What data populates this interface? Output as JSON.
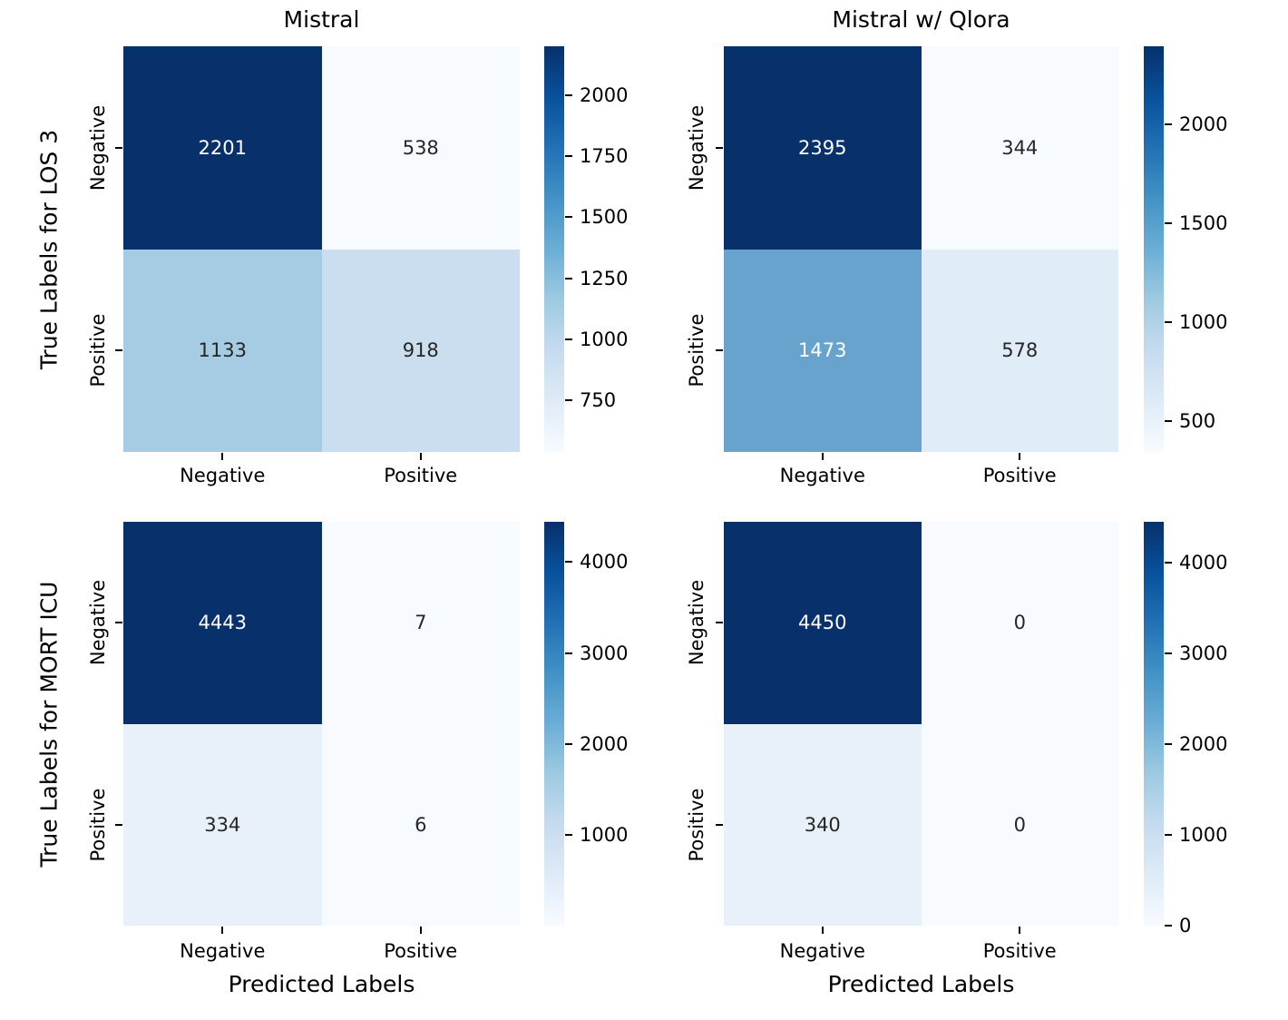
{
  "figure": {
    "background": "#ffffff",
    "annot_light_color": "#ffffff",
    "annot_dark_color": "#262626",
    "axis_text_color": "#000000",
    "colorbar_gradient_top_to_bottom": [
      "#08306b",
      "#08519c",
      "#2171b5",
      "#4292c6",
      "#6baed6",
      "#9ecae1",
      "#c6dbef",
      "#deebf7",
      "#f7fbff"
    ]
  },
  "chart_data": [
    {
      "type": "heatmap",
      "title": "Mistral",
      "ylabel": "True Labels for LOS 3",
      "xlabel": "",
      "x_tick_labels": [
        "Negative",
        "Positive"
      ],
      "y_tick_labels": [
        "Negative",
        "Positive"
      ],
      "values": [
        [
          2201,
          538
        ],
        [
          1133,
          918
        ]
      ],
      "vmin": 538,
      "vmax": 2201,
      "colorbar_ticks": [
        2000,
        1750,
        1500,
        1250,
        1000,
        750
      ],
      "colormap": "Blues",
      "legend_position": "right-colorbar",
      "cell_colors": [
        [
          "#08306b",
          "#f7fbff"
        ],
        [
          "#a6cce3",
          "#cadeef"
        ]
      ],
      "annot_colors": [
        [
          "#ffffff",
          "#262626"
        ],
        [
          "#262626",
          "#262626"
        ]
      ]
    },
    {
      "type": "heatmap",
      "title": "Mistral w/ Qlora",
      "ylabel": "",
      "xlabel": "",
      "x_tick_labels": [
        "Negative",
        "Positive"
      ],
      "y_tick_labels": [
        "Negative",
        "Positive"
      ],
      "values": [
        [
          2395,
          344
        ],
        [
          1473,
          578
        ]
      ],
      "vmin": 344,
      "vmax": 2395,
      "colorbar_ticks": [
        2000,
        1500,
        1000,
        500
      ],
      "colormap": "Blues",
      "legend_position": "right-colorbar",
      "cell_colors": [
        [
          "#08306b",
          "#f7fbff"
        ],
        [
          "#68a3ce",
          "#e0ecf8"
        ]
      ],
      "annot_colors": [
        [
          "#ffffff",
          "#262626"
        ],
        [
          "#ffffff",
          "#262626"
        ]
      ]
    },
    {
      "type": "heatmap",
      "title": "",
      "ylabel": "True Labels for MORT ICU",
      "xlabel": "Predicted Labels",
      "x_tick_labels": [
        "Negative",
        "Positive"
      ],
      "y_tick_labels": [
        "Negative",
        "Positive"
      ],
      "values": [
        [
          4443,
          7
        ],
        [
          334,
          6
        ]
      ],
      "vmin": 6,
      "vmax": 4443,
      "colorbar_ticks": [
        4000,
        3000,
        2000,
        1000
      ],
      "colormap": "Blues",
      "legend_position": "right-colorbar",
      "cell_colors": [
        [
          "#08306b",
          "#f7fbff"
        ],
        [
          "#e8f1fa",
          "#f7fbff"
        ]
      ],
      "annot_colors": [
        [
          "#ffffff",
          "#262626"
        ],
        [
          "#262626",
          "#262626"
        ]
      ]
    },
    {
      "type": "heatmap",
      "title": "",
      "ylabel": "",
      "xlabel": "Predicted Labels",
      "x_tick_labels": [
        "Negative",
        "Positive"
      ],
      "y_tick_labels": [
        "Negative",
        "Positive"
      ],
      "values": [
        [
          4450,
          0
        ],
        [
          340,
          0
        ]
      ],
      "vmin": 0,
      "vmax": 4450,
      "colorbar_ticks": [
        4000,
        3000,
        2000,
        1000,
        0
      ],
      "colormap": "Blues",
      "legend_position": "right-colorbar",
      "cell_colors": [
        [
          "#08306b",
          "#f7fbff"
        ],
        [
          "#e8f1fa",
          "#f7fbff"
        ]
      ],
      "annot_colors": [
        [
          "#ffffff",
          "#262626"
        ],
        [
          "#262626",
          "#262626"
        ]
      ]
    }
  ]
}
